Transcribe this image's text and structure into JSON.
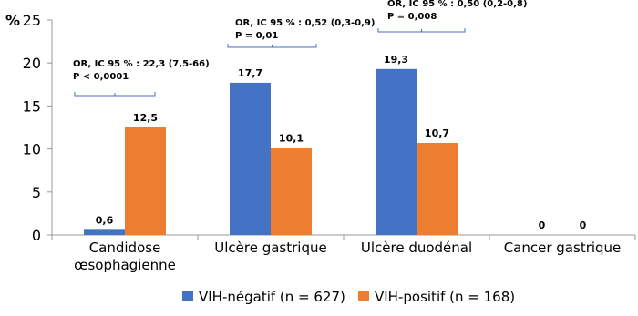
{
  "chart_data": {
    "type": "bar",
    "ylabel": "%",
    "categories": [
      "Candidose œsophagienne",
      "Ulcère gastrique",
      "Ulcère duodénal",
      "Cancer gastrique"
    ],
    "series": [
      {
        "name": "VIH-négatif (n = 627)",
        "color": "#4472c4",
        "values": [
          0.6,
          17.7,
          19.3,
          0
        ],
        "value_labels": [
          "0,6",
          "17,7",
          "19,3",
          "0"
        ]
      },
      {
        "name": "VIH-positif (n = 168)",
        "color": "#ed7d31",
        "values": [
          12.5,
          10.1,
          10.7,
          0
        ],
        "value_labels": [
          "12,5",
          "10,1",
          "10,7",
          "0"
        ]
      }
    ],
    "ylim": [
      0,
      25
    ],
    "yticks": [
      0,
      5,
      10,
      15,
      20,
      25
    ],
    "grid": false,
    "legend": "bottom",
    "annotations": [
      [
        "OR, IC 95 % : 22,3 (7,5-66)",
        "P < 0,0001"
      ],
      [
        "OR, IC 95 % : 0,52 (0,3-0,9)",
        "P = 0,01"
      ],
      [
        "OR, IC 95 % : 0,50 (0,2-0,8)",
        "P = 0,008"
      ]
    ]
  }
}
